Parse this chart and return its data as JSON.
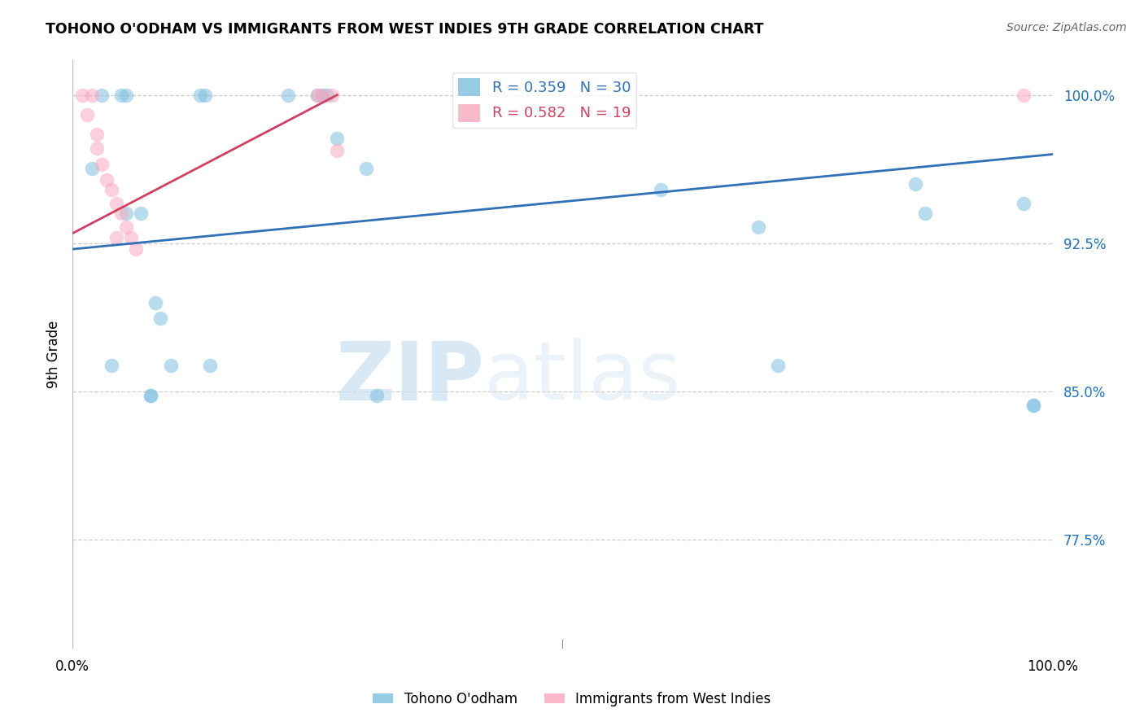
{
  "title": "TOHONO O'ODHAM VS IMMIGRANTS FROM WEST INDIES 9TH GRADE CORRELATION CHART",
  "source": "Source: ZipAtlas.com",
  "ylabel": "9th Grade",
  "ytick_values": [
    0.775,
    0.85,
    0.925,
    1.0
  ],
  "xlim": [
    0.0,
    1.0
  ],
  "ylim": [
    0.72,
    1.018
  ],
  "watermark_zip": "ZIP",
  "watermark_atlas": "atlas",
  "legend_blue_r": "0.359",
  "legend_blue_n": "30",
  "legend_pink_r": "0.582",
  "legend_pink_n": "19",
  "legend_label_blue": "Tohono O'odham",
  "legend_label_pink": "Immigrants from West Indies",
  "blue_color": "#7fbfdf",
  "pink_color": "#f9a8bf",
  "line_blue_color": "#3070b5",
  "line_pink_color": "#d04060",
  "blue_scatter_x": [
    0.03,
    0.05,
    0.055,
    0.13,
    0.135,
    0.22,
    0.25,
    0.255,
    0.26,
    0.27,
    0.02,
    0.055,
    0.07,
    0.085,
    0.09,
    0.1,
    0.14,
    0.3,
    0.6,
    0.7,
    0.72,
    0.86,
    0.87,
    0.97,
    0.98,
    0.04,
    0.08,
    0.08,
    0.31,
    0.98
  ],
  "blue_scatter_y": [
    1.0,
    1.0,
    1.0,
    1.0,
    1.0,
    1.0,
    1.0,
    1.0,
    1.0,
    0.978,
    0.963,
    0.94,
    0.94,
    0.895,
    0.887,
    0.863,
    0.863,
    0.963,
    0.952,
    0.933,
    0.863,
    0.955,
    0.94,
    0.945,
    0.843,
    0.863,
    0.848,
    0.848,
    0.848,
    0.843
  ],
  "pink_scatter_x": [
    0.01,
    0.015,
    0.02,
    0.025,
    0.025,
    0.03,
    0.035,
    0.04,
    0.045,
    0.045,
    0.05,
    0.055,
    0.06,
    0.065,
    0.25,
    0.255,
    0.265,
    0.27,
    0.97
  ],
  "pink_scatter_y": [
    1.0,
    0.99,
    1.0,
    0.98,
    0.973,
    0.965,
    0.957,
    0.952,
    0.945,
    0.928,
    0.94,
    0.933,
    0.928,
    0.922,
    1.0,
    1.0,
    1.0,
    0.972,
    1.0
  ],
  "blue_line_x": [
    0.0,
    1.0
  ],
  "blue_line_y": [
    0.922,
    0.97
  ],
  "pink_line_x": [
    0.0,
    0.27
  ],
  "pink_line_y": [
    0.93,
    1.0
  ]
}
